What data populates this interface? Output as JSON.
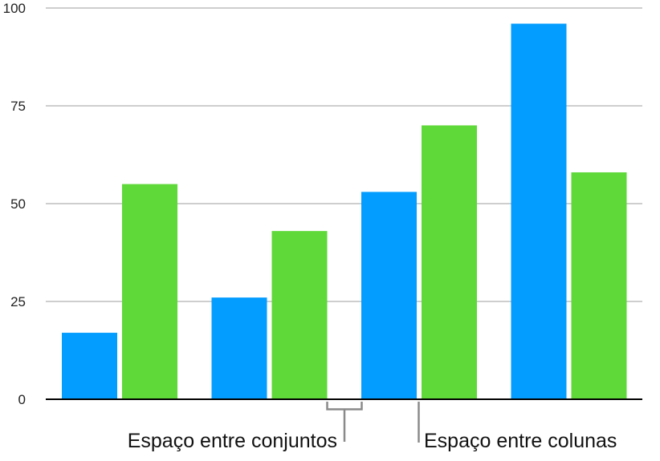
{
  "chart_data": {
    "type": "bar",
    "categories": [
      "",
      "",
      "",
      ""
    ],
    "series": [
      {
        "values": [
          17,
          26,
          53,
          96
        ],
        "color": "#039DFF"
      },
      {
        "values": [
          55,
          43,
          70,
          58
        ],
        "color": "#5FD83A"
      }
    ],
    "ylim": [
      0,
      100
    ],
    "yticks": [
      "0",
      "25",
      "50",
      "75",
      "100"
    ],
    "grid": true,
    "annotations": {
      "set_gap": "Espaço entre conjuntos",
      "column_gap": "Espaço entre colunas"
    }
  }
}
